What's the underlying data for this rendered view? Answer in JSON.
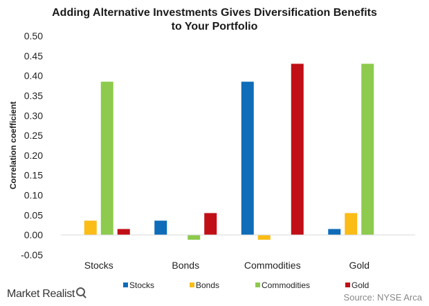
{
  "chart_data": {
    "type": "bar",
    "title_lines": [
      "Adding Alternative Investments Gives Diversification Benefits",
      "to Your Portfolio"
    ],
    "ylabel": "Correlation coefficient",
    "xlabel": "",
    "categories": [
      "Stocks",
      "Bonds",
      "Commodities",
      "Gold"
    ],
    "ylim": [
      -0.05,
      0.5
    ],
    "yticks": [
      "-0.05",
      "0.00",
      "0.05",
      "0.10",
      "0.15",
      "0.20",
      "0.25",
      "0.30",
      "0.35",
      "0.40",
      "0.45",
      "0.50"
    ],
    "ytick_values": [
      -0.05,
      0,
      0.05,
      0.1,
      0.15,
      0.2,
      0.25,
      0.3,
      0.35,
      0.4,
      0.45,
      0.5
    ],
    "grid": false,
    "legend_position": "bottom",
    "series": [
      {
        "name": "Stocks",
        "color": "#0e6cb8",
        "values": [
          null,
          0.036,
          0.385,
          0.015
        ]
      },
      {
        "name": "Bonds",
        "color": "#fbbc16",
        "values": [
          0.036,
          null,
          -0.012,
          0.055
        ]
      },
      {
        "name": "Commodities",
        "color": "#8dca4d",
        "values": [
          0.385,
          -0.012,
          null,
          0.43
        ]
      },
      {
        "name": "Gold",
        "color": "#c00f17",
        "values": [
          0.015,
          0.055,
          0.43,
          null
        ]
      }
    ]
  },
  "footer": {
    "brand": "Market Realist",
    "source": "Source: NYSE Arca"
  }
}
